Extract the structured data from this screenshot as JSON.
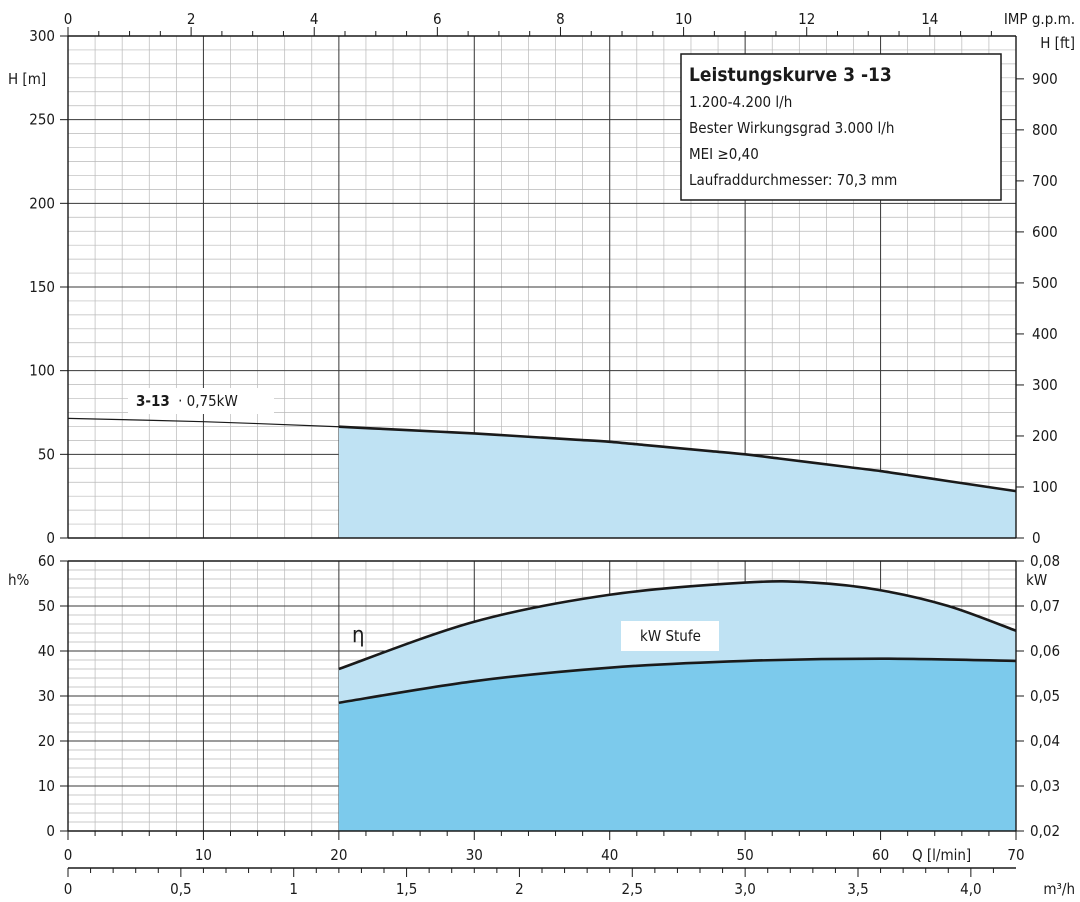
{
  "chart_data": [
    {
      "type": "line",
      "panel": "head",
      "legend_box": {
        "title": "Leistungskurve 3 -13",
        "lines": [
          "1.200-4.200 l/h",
          "Bester Wirkungsgrad 3.000 l/h",
          "MEI ≥0,40",
          "Laufraddurchmesser: 70,3 mm"
        ],
        "placement": "top-right"
      },
      "curve_label": {
        "model": "3-13",
        "power": "· 0,75kW"
      },
      "x_top": {
        "unit": "IMP g.p.m.",
        "ticks": [
          "0",
          "2",
          "4",
          "6",
          "8",
          "10",
          "12",
          "14"
        ],
        "range": [
          0,
          15.4
        ]
      },
      "y_left": {
        "unit": "H [m]",
        "ticks": [
          "0",
          "50",
          "100",
          "150",
          "200",
          "250",
          "300"
        ],
        "range": [
          0,
          300
        ]
      },
      "y_right": {
        "unit": "H [ft]",
        "ticks": [
          "0",
          "100",
          "200",
          "300",
          "400",
          "500",
          "600",
          "700",
          "800",
          "900"
        ],
        "range": [
          0,
          984
        ]
      },
      "x_range_lmin": [
        0,
        70
      ],
      "operating_range_lmin": [
        20,
        70
      ],
      "series": [
        {
          "x": [
            0,
            10,
            20,
            30,
            40,
            50,
            60,
            70
          ],
          "y": [
            71.5,
            69.5,
            66.5,
            62.5,
            57.5,
            50,
            40,
            28
          ]
        }
      ],
      "grid": true
    },
    {
      "type": "area",
      "panel": "efficiency-power",
      "eta_label": "η",
      "power_label": "kW Stufe",
      "y_left": {
        "unit": "h%",
        "ticks": [
          "0",
          "10",
          "20",
          "30",
          "40",
          "50",
          "60"
        ],
        "range": [
          0,
          60
        ]
      },
      "y_right": {
        "unit": "kW",
        "ticks": [
          "0,02",
          "0,03",
          "0,04",
          "0,05",
          "0,06",
          "0,07",
          "0,08"
        ],
        "range": [
          0.02,
          0.08
        ]
      },
      "x_bottom_lmin": {
        "unit": "Q [l/min]",
        "ticks": [
          "0",
          "10",
          "20",
          "30",
          "40",
          "50",
          "60",
          "70"
        ],
        "range": [
          0,
          70
        ]
      },
      "x_bottom_m3h": {
        "unit": "m³/h",
        "ticks": [
          "0",
          "0,5",
          "1",
          "1,5",
          "2",
          "2,5",
          "3,0",
          "3,5",
          "4,0"
        ],
        "range": [
          0,
          4.2
        ]
      },
      "series": [
        {
          "curve": "eta",
          "x": [
            20,
            30,
            40,
            50,
            55,
            60,
            65,
            70
          ],
          "y": [
            36,
            46.5,
            52.5,
            55.2,
            55.2,
            53.5,
            50,
            44.5
          ]
        },
        {
          "curve": "power",
          "x": [
            20,
            30,
            40,
            50,
            60,
            70
          ],
          "y": [
            0.0485,
            0.0533,
            0.0563,
            0.0578,
            0.0583,
            0.0578
          ]
        }
      ],
      "grid": true
    }
  ]
}
